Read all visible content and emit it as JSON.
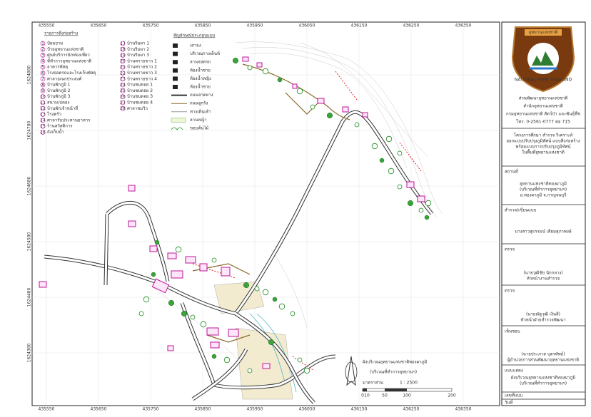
{
  "grid_labels": {
    "top": [
      "435550",
      "435650",
      "435750",
      "435850",
      "435950",
      "436050",
      "436150",
      "436250",
      "436350"
    ],
    "left": [
      "1624880",
      "1624780",
      "1624680",
      "1624580",
      "1624480",
      "1624380"
    ]
  },
  "building_list": {
    "title": "รายการสิ่งก่อสร้าง",
    "items": [
      {
        "no": "1",
        "name": "ป้อมยาม"
      },
      {
        "no": "2",
        "name": "ป้ายอุทยานแห่งชาติ"
      },
      {
        "no": "3",
        "name": "ศูนย์บริการนักท่องเที่ยว"
      },
      {
        "no": "4",
        "name": "ที่ทำการอุทยานแห่งชาติ"
      },
      {
        "no": "5",
        "name": "อาคารพัสดุ"
      },
      {
        "no": "6",
        "name": "โรงจอดรถและโรงเก็บพัสดุ"
      },
      {
        "no": "7",
        "name": "ศาลาอเนกประสงค์"
      },
      {
        "no": "8",
        "name": "บ้านพักภูมิ 1"
      },
      {
        "no": "9",
        "name": "บ้านพักภูมิ 2"
      },
      {
        "no": "10",
        "name": "บ้านพักภูมิ 3"
      },
      {
        "no": "11",
        "name": "สนามเปตอง"
      },
      {
        "no": "12",
        "name": "บ้านพักเจ้าหน้าที่"
      },
      {
        "no": "13",
        "name": "โรงครัว"
      },
      {
        "no": "14",
        "name": "ศาลารับประทานอาหาร"
      },
      {
        "no": "15",
        "name": "ร้านสวัสดิการ"
      },
      {
        "no": "16",
        "name": "ถังเก็บน้ำ"
      },
      {
        "no": "17",
        "name": "บ้านริมผา 1"
      },
      {
        "no": "18",
        "name": "บ้านริมผา 2"
      },
      {
        "no": "19",
        "name": "บ้านริมผา 3"
      },
      {
        "no": "20",
        "name": "บ้านทรายขาว 1"
      },
      {
        "no": "21",
        "name": "บ้านทรายขาว 2"
      },
      {
        "no": "22",
        "name": "บ้านทรายขาว 3"
      },
      {
        "no": "23",
        "name": "บ้านทรายขาว 4"
      },
      {
        "no": "24",
        "name": "บ้านชมดอย 1"
      },
      {
        "no": "25",
        "name": "บ้านชมดอย 2"
      },
      {
        "no": "26",
        "name": "บ้านชมดอย 3"
      },
      {
        "no": "27",
        "name": "บ้านชมดอย 4"
      },
      {
        "no": "28",
        "name": "ศาลาชมวิว"
      }
    ]
  },
  "symbol_legend": {
    "title": "สัญลักษณ์ประกอบแบบ",
    "items": [
      "เสาธง",
      "บริเวณกางเต็นท์",
      "ลานจอดรถ",
      "ห้องน้ำชาย",
      "ห้องน้ำหญิง",
      "ห้องน้ำชาย",
      "ถนนลาดยาง",
      "ถนนลูกรัง",
      "ทางเดินเท้า",
      "ลานหญ้า",
      "ขอบต้นไม้"
    ]
  },
  "map_title": {
    "title": "ผังบริเวณอุทยานแห่งชาติทองผาภูมิ",
    "subtitle": "(บริเวณที่ทำการอุทยานฯ)",
    "scale_label": "มาตราส่วน",
    "scale_value": "1 : 2500",
    "scale_ticks": [
      "0",
      "10",
      "50",
      "100",
      "200"
    ]
  },
  "title_block": {
    "logo_top": "อุทยานแห่งชาติ",
    "logo_bottom": "NATIONAL PARK THAILAND",
    "office": [
      "ส่วนพัฒนาอุทยานแห่งชาติ",
      "สำนักอุทยานแห่งชาติ",
      "กรมอุทยานแห่งชาติ สัตว์ป่า และพันธุ์พืช",
      "โทร. 0-2561-0777 ต่อ 715"
    ],
    "project": [
      "โครงการศึกษา สำรวจ วิเคราะห์",
      "ออกแบบปรับปรุงภูมิทัศน์ แบบสิ่งก่อสร้าง",
      "พร้อมแบบการปรับปรุงภูมิทัศน์",
      "ในพื้นที่อุทยานแห่งชาติ"
    ],
    "location_label": "สถานที่",
    "location": [
      "อุทยานแห่งชาติทองผาภูมิ",
      "(บริเวณที่ทำการอุทยานฯ)",
      "อ.ทองผาภูมิ จ.กาญจนบุรี"
    ],
    "survey_label": "สำรวจ/เขียนแบบ",
    "survey": "นางสาวสุธรรมน์ เสียมสุภาพงษ์",
    "check1_label": "ตรวจ",
    "check1": [
      "(นายวุฒิชัย นักกลาง)",
      "หัวหน้างานสำรวจ"
    ],
    "check2_label": "ตรวจ",
    "check2": [
      "(นายณัฐวุฒิ เงินสี)",
      "หัวหน้าฝ่ายสำรวจพัฒนา"
    ],
    "approve_label": "เห็นชอบ",
    "approve": [
      "(นายประภาส บุตรทัพย์)",
      "ผู้อำนวยการส่วนพัฒนาอุทยานแห่งชาติ"
    ],
    "drawing_label": "แบบแสดง",
    "drawing": [
      "ผังบริเวณอุทยานแห่งชาติทองผาภูมิ",
      "(บริเวณที่ทำการอุทยานฯ)"
    ],
    "number_label": "เลขที่แบบ",
    "date_label": "วันที่"
  }
}
